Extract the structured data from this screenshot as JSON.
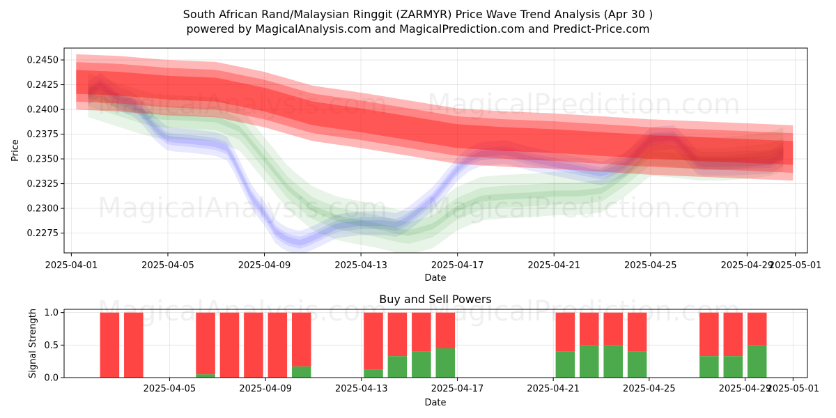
{
  "chart_data": [
    {
      "type": "area",
      "title_line1": "South African Rand/Malaysian Ringgit (ZARMYR) Price Wave Trend Analysis (Apr 30 )",
      "title_line2": "powered by MagicalAnalysis.com and MagicalPrediction.com and Predict-Price.com",
      "xlabel": "Date",
      "ylabel": "Price",
      "xlim": [
        -0.3,
        30.5
      ],
      "ylim": [
        0.2255,
        0.2462
      ],
      "x_ticks": [
        {
          "day": 0,
          "label": "2025-04-01"
        },
        {
          "day": 4,
          "label": "2025-04-05"
        },
        {
          "day": 8,
          "label": "2025-04-09"
        },
        {
          "day": 12,
          "label": "2025-04-13"
        },
        {
          "day": 16,
          "label": "2025-04-17"
        },
        {
          "day": 20,
          "label": "2025-04-21"
        },
        {
          "day": 24,
          "label": "2025-04-25"
        },
        {
          "day": 28,
          "label": "2025-04-29"
        },
        {
          "day": 30,
          "label": "2025-05-01"
        }
      ],
      "y_ticks": [
        {
          "value": 0.2275,
          "label": "0.2275"
        },
        {
          "value": 0.23,
          "label": "0.2300"
        },
        {
          "value": 0.2325,
          "label": "0.2325"
        },
        {
          "value": 0.235,
          "label": "0.2350"
        },
        {
          "value": 0.2375,
          "label": "0.2375"
        },
        {
          "value": 0.24,
          "label": "0.2400"
        },
        {
          "value": 0.2425,
          "label": "0.2425"
        },
        {
          "value": 0.245,
          "label": "0.2450"
        }
      ],
      "watermarks": [
        "MagicalAnalysis.com",
        "MagicalPrediction.com",
        "MagicalAnalysis.com",
        "MagicalPrediction.com"
      ],
      "series": [
        {
          "name": "red trend band",
          "color": "#ff0000",
          "x": [
            0,
            2,
            4,
            6,
            8,
            10,
            12,
            14,
            16,
            18,
            20,
            22,
            24,
            26,
            28,
            29.9
          ],
          "mid": [
            0.2428,
            0.2426,
            0.2422,
            0.242,
            0.241,
            0.2396,
            0.2389,
            0.2381,
            0.2373,
            0.237,
            0.2368,
            0.2365,
            0.2362,
            0.236,
            0.2358,
            0.2356
          ],
          "halfwidths": [
            0.0012,
            0.002,
            0.0028
          ]
        },
        {
          "name": "blue wave",
          "color": "#0000ff",
          "x": [
            0.6,
            1.2,
            2,
            2.6,
            3,
            3.5,
            4,
            5,
            6,
            6.5,
            7,
            7.5,
            8,
            8.5,
            9,
            9.5,
            10,
            11,
            12,
            13,
            13.5,
            14,
            15,
            15.5,
            16,
            16.5,
            17,
            18,
            19,
            20,
            21,
            22,
            23,
            24,
            25,
            26,
            27,
            28,
            29,
            29.5
          ],
          "y": [
            0.2415,
            0.2425,
            0.241,
            0.2405,
            0.2395,
            0.238,
            0.237,
            0.2368,
            0.2365,
            0.236,
            0.2335,
            0.231,
            0.2295,
            0.2275,
            0.2268,
            0.2265,
            0.227,
            0.2282,
            0.2285,
            0.2285,
            0.2283,
            0.229,
            0.231,
            0.2325,
            0.234,
            0.235,
            0.2355,
            0.2357,
            0.235,
            0.2345,
            0.234,
            0.2335,
            0.2345,
            0.237,
            0.2372,
            0.2345,
            0.2345,
            0.2346,
            0.2347,
            0.2355
          ],
          "offsets": [
            -0.0012,
            -0.0006,
            0,
            0.0006,
            0.0012
          ]
        },
        {
          "name": "green wave",
          "color": "#008000",
          "x": [
            0.6,
            1.5,
            2.5,
            3.5,
            4.5,
            6,
            7,
            8,
            9,
            10,
            11,
            12,
            12.5,
            13,
            13.5,
            14,
            15,
            16,
            17,
            18,
            19,
            20,
            21,
            22,
            23,
            24,
            25,
            26,
            27,
            28,
            29,
            29.5
          ],
          "y": [
            0.2415,
            0.2408,
            0.24,
            0.2393,
            0.2392,
            0.239,
            0.238,
            0.235,
            0.232,
            0.23,
            0.229,
            0.2285,
            0.2283,
            0.228,
            0.2277,
            0.2275,
            0.2282,
            0.23,
            0.231,
            0.2312,
            0.2313,
            0.2315,
            0.2315,
            0.2318,
            0.2335,
            0.2355,
            0.2353,
            0.235,
            0.235,
            0.2352,
            0.2355,
            0.236
          ],
          "offsets": [
            -0.0022,
            -0.0011,
            0,
            0.0011,
            0.0022
          ]
        }
      ]
    },
    {
      "type": "bar",
      "title": "Buy and Sell Powers",
      "xlabel": "Date",
      "ylabel": "Signal Strength",
      "xlim": [
        -0.4,
        30.6
      ],
      "ylim": [
        0,
        1.05
      ],
      "x_ticks": [
        {
          "day": 4,
          "label": "2025-04-05"
        },
        {
          "day": 8,
          "label": "2025-04-09"
        },
        {
          "day": 12,
          "label": "2025-04-13"
        },
        {
          "day": 16,
          "label": "2025-04-17"
        },
        {
          "day": 20,
          "label": "2025-04-21"
        },
        {
          "day": 24,
          "label": "2025-04-25"
        },
        {
          "day": 28,
          "label": "2025-04-29"
        },
        {
          "day": 30,
          "label": "2025-05-01"
        }
      ],
      "y_ticks": [
        {
          "value": 0.0,
          "label": "0.0"
        },
        {
          "value": 0.5,
          "label": "0.5"
        },
        {
          "value": 1.0,
          "label": "1.0"
        }
      ],
      "watermarks": [
        "MagicalAnalysis.com",
        "MagicalPrediction.com"
      ],
      "buy_color": "#4caa4c",
      "sell_color": "#ff4444",
      "days": [
        1.5,
        2.5,
        5.5,
        6.5,
        7.5,
        8.5,
        9.5,
        12.5,
        13.5,
        14.5,
        15.5,
        20.5,
        21.5,
        22.5,
        23.5,
        26.5,
        27.5,
        28.5
      ],
      "buy": [
        0,
        0,
        0.05,
        0,
        0,
        0,
        0.17,
        0.12,
        0.33,
        0.4,
        0.45,
        0.4,
        0.5,
        0.5,
        0.4,
        0.33,
        0.33,
        0.5
      ]
    }
  ]
}
